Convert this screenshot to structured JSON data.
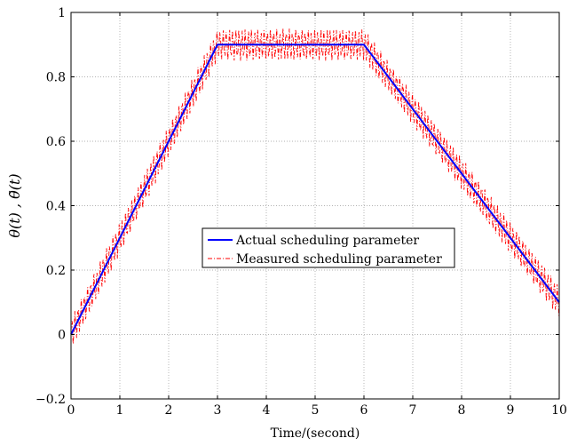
{
  "chart_data": {
    "type": "line",
    "title": "",
    "xlabel": "Time/(second)",
    "ylabel": "θ(t) , θ̃(t)",
    "xlim": [
      0,
      10
    ],
    "ylim": [
      -0.2,
      1
    ],
    "xticks": [
      0,
      1,
      2,
      3,
      4,
      5,
      6,
      7,
      8,
      9,
      10
    ],
    "yticks": [
      -0.2,
      0,
      0.2,
      0.4,
      0.6,
      0.8,
      1
    ],
    "xtick_labels": [
      "0",
      "1",
      "2",
      "3",
      "4",
      "5",
      "6",
      "7",
      "8",
      "9",
      "10"
    ],
    "ytick_labels": [
      "−0.2",
      "0",
      "0.2",
      "0.4",
      "0.6",
      "0.8",
      "1"
    ],
    "grid": true,
    "legend_position": "center",
    "series": [
      {
        "name": "Actual scheduling parameter",
        "color": "#0000ff",
        "style": "solid",
        "x": [
          0,
          3,
          6,
          10
        ],
        "y": [
          0,
          0.9,
          0.9,
          0.1
        ]
      },
      {
        "name": "Measured scheduling parameter",
        "color": "#ff0000",
        "style": "dash-dot",
        "description_of_values": "actual parameter plus noise of amplitude about ±0.05",
        "noise_amplitude": 0.05,
        "x": [
          0,
          3,
          6,
          10
        ],
        "y": [
          0,
          0.9,
          0.9,
          0.1
        ]
      }
    ]
  }
}
